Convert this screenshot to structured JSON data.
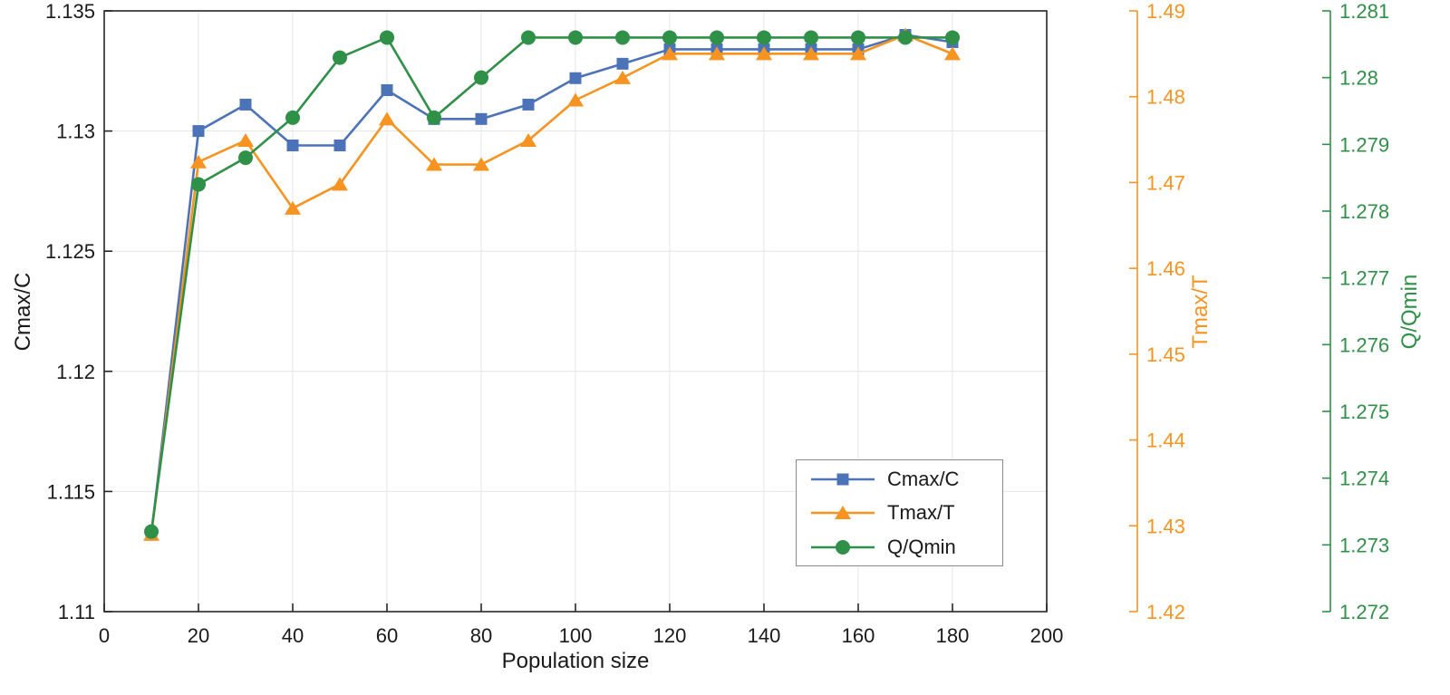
{
  "chart_data": {
    "type": "line",
    "title": "",
    "xlabel": "Population size",
    "xlim": [
      0,
      200
    ],
    "grid": true,
    "legend_position": "lower-right-inside",
    "xticks": [
      {
        "v": 0,
        "label": "0"
      },
      {
        "v": 20,
        "label": "20"
      },
      {
        "v": 40,
        "label": "40"
      },
      {
        "v": 60,
        "label": "60"
      },
      {
        "v": 80,
        "label": "80"
      },
      {
        "v": 100,
        "label": "100"
      },
      {
        "v": 120,
        "label": "120"
      },
      {
        "v": 140,
        "label": "140"
      },
      {
        "v": 160,
        "label": "160"
      },
      {
        "v": 180,
        "label": "180"
      },
      {
        "v": 200,
        "label": "200"
      }
    ],
    "axes": {
      "left": {
        "label": "Cmax/C",
        "lim": [
          1.11,
          1.135
        ],
        "color": "#262626",
        "text_color": "#1a1a1a",
        "ticks": [
          {
            "v": 1.11,
            "label": "1.11"
          },
          {
            "v": 1.115,
            "label": "1.115"
          },
          {
            "v": 1.12,
            "label": "1.12"
          },
          {
            "v": 1.125,
            "label": "1.125"
          },
          {
            "v": 1.13,
            "label": "1.13"
          },
          {
            "v": 1.135,
            "label": "1.135"
          }
        ]
      },
      "right1": {
        "label": "Tmax/T",
        "lim": [
          1.42,
          1.49
        ],
        "color": "#F79421",
        "text_color": "#F79421",
        "ticks": [
          {
            "v": 1.42,
            "label": "1.42"
          },
          {
            "v": 1.43,
            "label": "1.43"
          },
          {
            "v": 1.44,
            "label": "1.44"
          },
          {
            "v": 1.45,
            "label": "1.45"
          },
          {
            "v": 1.46,
            "label": "1.46"
          },
          {
            "v": 1.47,
            "label": "1.47"
          },
          {
            "v": 1.48,
            "label": "1.48"
          },
          {
            "v": 1.49,
            "label": "1.49"
          }
        ]
      },
      "right2": {
        "label": "Q/Qmin",
        "lim": [
          1.272,
          1.281
        ],
        "color": "#2F9047",
        "text_color": "#2F9047",
        "ticks": [
          {
            "v": 1.272,
            "label": "1.272"
          },
          {
            "v": 1.273,
            "label": "1.273"
          },
          {
            "v": 1.274,
            "label": "1.274"
          },
          {
            "v": 1.275,
            "label": "1.275"
          },
          {
            "v": 1.276,
            "label": "1.276"
          },
          {
            "v": 1.277,
            "label": "1.277"
          },
          {
            "v": 1.278,
            "label": "1.278"
          },
          {
            "v": 1.279,
            "label": "1.279"
          },
          {
            "v": 1.28,
            "label": "1.28"
          },
          {
            "v": 1.281,
            "label": "1.281"
          }
        ]
      }
    },
    "x": [
      10,
      20,
      30,
      40,
      50,
      60,
      70,
      80,
      90,
      100,
      110,
      120,
      130,
      140,
      150,
      160,
      170,
      180
    ],
    "series": [
      {
        "name": "Cmax/C",
        "axis": "left",
        "color": "#4C72B8",
        "marker": "square",
        "values": [
          1.1132,
          1.13,
          1.1311,
          1.1294,
          1.1294,
          1.1317,
          1.1305,
          1.1305,
          1.1311,
          1.1322,
          1.1328,
          1.1334,
          1.1334,
          1.1334,
          1.1334,
          1.1334,
          1.134,
          1.1337
        ]
      },
      {
        "name": "Tmax/T",
        "axis": "right1",
        "color": "#F79421",
        "marker": "triangle",
        "values": [
          1.429,
          1.4724,
          1.4749,
          1.467,
          1.4698,
          1.4774,
          1.4721,
          1.4721,
          1.4749,
          1.4796,
          1.4822,
          1.485,
          1.485,
          1.485,
          1.485,
          1.485,
          1.4872,
          1.485
        ]
      },
      {
        "name": "Q/Qmin",
        "axis": "right2",
        "color": "#2F9047",
        "marker": "circle",
        "values": [
          1.2732,
          1.2784,
          1.2788,
          1.2794,
          1.2803,
          1.2806,
          1.2794,
          1.28,
          1.2806,
          1.2806,
          1.2806,
          1.2806,
          1.2806,
          1.2806,
          1.2806,
          1.2806,
          1.2806,
          1.2806
        ]
      }
    ],
    "legend_entries": [
      "Cmax/C",
      "Tmax/T",
      "Q/Qmin"
    ]
  }
}
